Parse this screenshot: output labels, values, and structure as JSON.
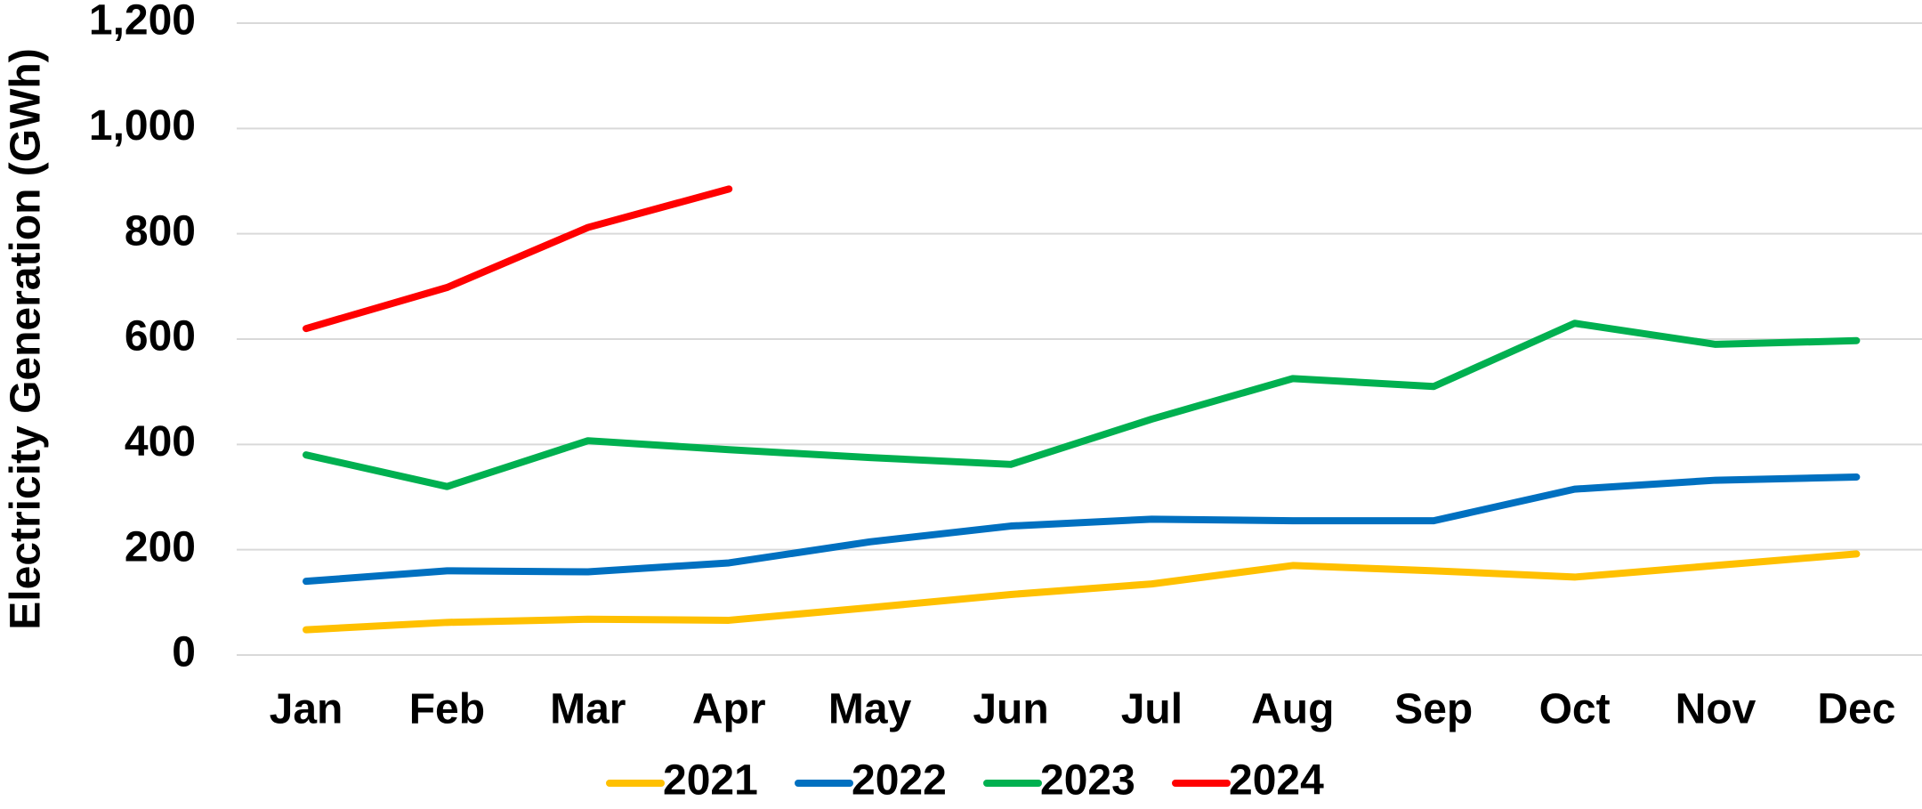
{
  "chart_data": {
    "type": "line",
    "y_label": "Electricity Generation (GWh)",
    "categories": [
      "Jan",
      "Feb",
      "Mar",
      "Apr",
      "May",
      "Jun",
      "Jul",
      "Aug",
      "Sep",
      "Oct",
      "Nov",
      "Dec"
    ],
    "series": [
      {
        "name": "2021",
        "color": "#FFC000",
        "values": [
          48,
          62,
          68,
          66,
          90,
          115,
          135,
          170,
          160,
          148,
          170,
          192
        ]
      },
      {
        "name": "2022",
        "color": "#0070C0",
        "values": [
          140,
          160,
          158,
          175,
          215,
          245,
          258,
          255,
          255,
          315,
          332,
          338
        ]
      },
      {
        "name": "2023",
        "color": "#00B050",
        "values": [
          380,
          320,
          407,
          390,
          375,
          362,
          448,
          525,
          510,
          630,
          590,
          597
        ]
      },
      {
        "name": "2024",
        "color": "#FF0000",
        "values": [
          620,
          698,
          812,
          885,
          null,
          null,
          null,
          null,
          null,
          null,
          null,
          null
        ]
      }
    ],
    "ylim": [
      0,
      1200
    ],
    "yticks": [
      0,
      200,
      400,
      600,
      800,
      {
        "value": 1000,
        "label": "1,000"
      },
      {
        "value": 1200,
        "label": "1,200"
      }
    ],
    "grid": true,
    "legend": "bottom"
  }
}
